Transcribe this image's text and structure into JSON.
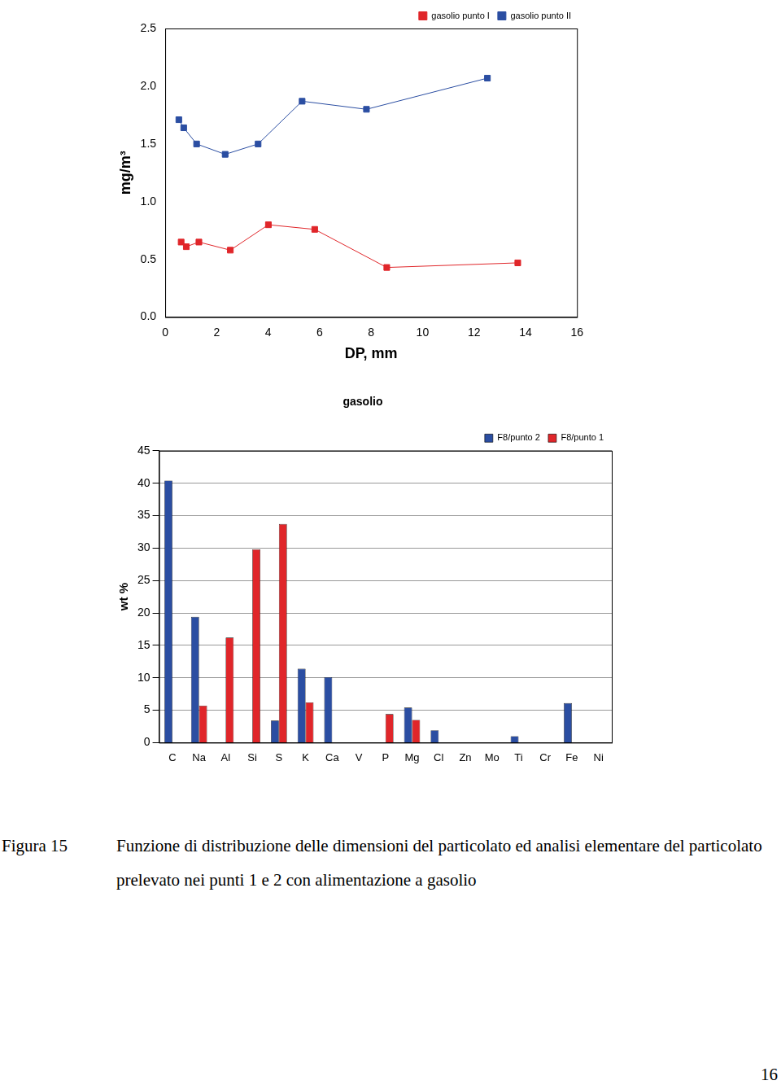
{
  "chart_data": [
    {
      "type": "line",
      "x_label": "DP, mm",
      "y_label": "mg/m³",
      "xlim": [
        0,
        16
      ],
      "xticks": [
        0,
        2,
        4,
        6,
        8,
        10,
        12,
        14,
        16
      ],
      "ylim": [
        0,
        2.5
      ],
      "yticks": [
        {
          "value": 0,
          "label": "0.0"
        },
        0.5,
        {
          "value": 1,
          "label": "1.0"
        },
        1.5,
        {
          "value": 2,
          "label": "2.0"
        },
        2.5
      ],
      "grid": false,
      "legend": "upper right",
      "series": [
        {
          "name": "gasolio punto I",
          "color": "#e0262a",
          "marker": "square",
          "line_style": "solid",
          "x": [
            0.62,
            0.82,
            1.31,
            2.53,
            4.01,
            5.81,
            8.61,
            13.7
          ],
          "values": [
            0.65,
            0.61,
            0.65,
            0.58,
            0.8,
            0.76,
            0.43,
            0.47
          ]
        },
        {
          "name": "gasolio punto II",
          "color": "#2b4ea2",
          "marker": "square",
          "line_style": "solid",
          "x": [
            0.53,
            0.72,
            1.22,
            2.33,
            3.61,
            5.32,
            7.82,
            12.52
          ],
          "values": [
            1.71,
            1.64,
            1.5,
            1.41,
            1.5,
            1.87,
            1.8,
            2.07
          ]
        }
      ]
    },
    {
      "type": "bar",
      "title": "gasolio",
      "y_label": "wt %",
      "categories": [
        "C",
        "Na",
        "Al",
        "Si",
        "S",
        "K",
        "Ca",
        "V",
        "P",
        "Mg",
        "Cl",
        "Zn",
        "Mo",
        "Ti",
        "Cr",
        "Fe",
        "Ni"
      ],
      "ylim": [
        0,
        45
      ],
      "yticks": [
        0,
        5,
        10,
        15,
        20,
        25,
        30,
        35,
        40,
        45
      ],
      "grid": true,
      "legend": "upper right",
      "series": [
        {
          "name": "F8/punto 2",
          "color": "#2b4ea2",
          "values": [
            40.4,
            19.4,
            0,
            0,
            3.4,
            11.4,
            10.1,
            0,
            0,
            5.4,
            1.9,
            0,
            0,
            1.0,
            0,
            6.1,
            0
          ]
        },
        {
          "name": "F8/punto 1",
          "color": "#e0262a",
          "values": [
            0,
            5.7,
            16.2,
            29.8,
            33.7,
            6.2,
            0,
            0,
            4.4,
            3.5,
            0,
            0,
            0,
            0,
            0,
            0,
            0
          ]
        }
      ]
    }
  ],
  "caption": {
    "label": "Figura 15",
    "text": "Funzione di distribuzione delle dimensioni del particolato ed analisi elementare del particolato prelevato nei punti 1 e 2 con alimentazione a gasolio"
  },
  "page_number": 16
}
